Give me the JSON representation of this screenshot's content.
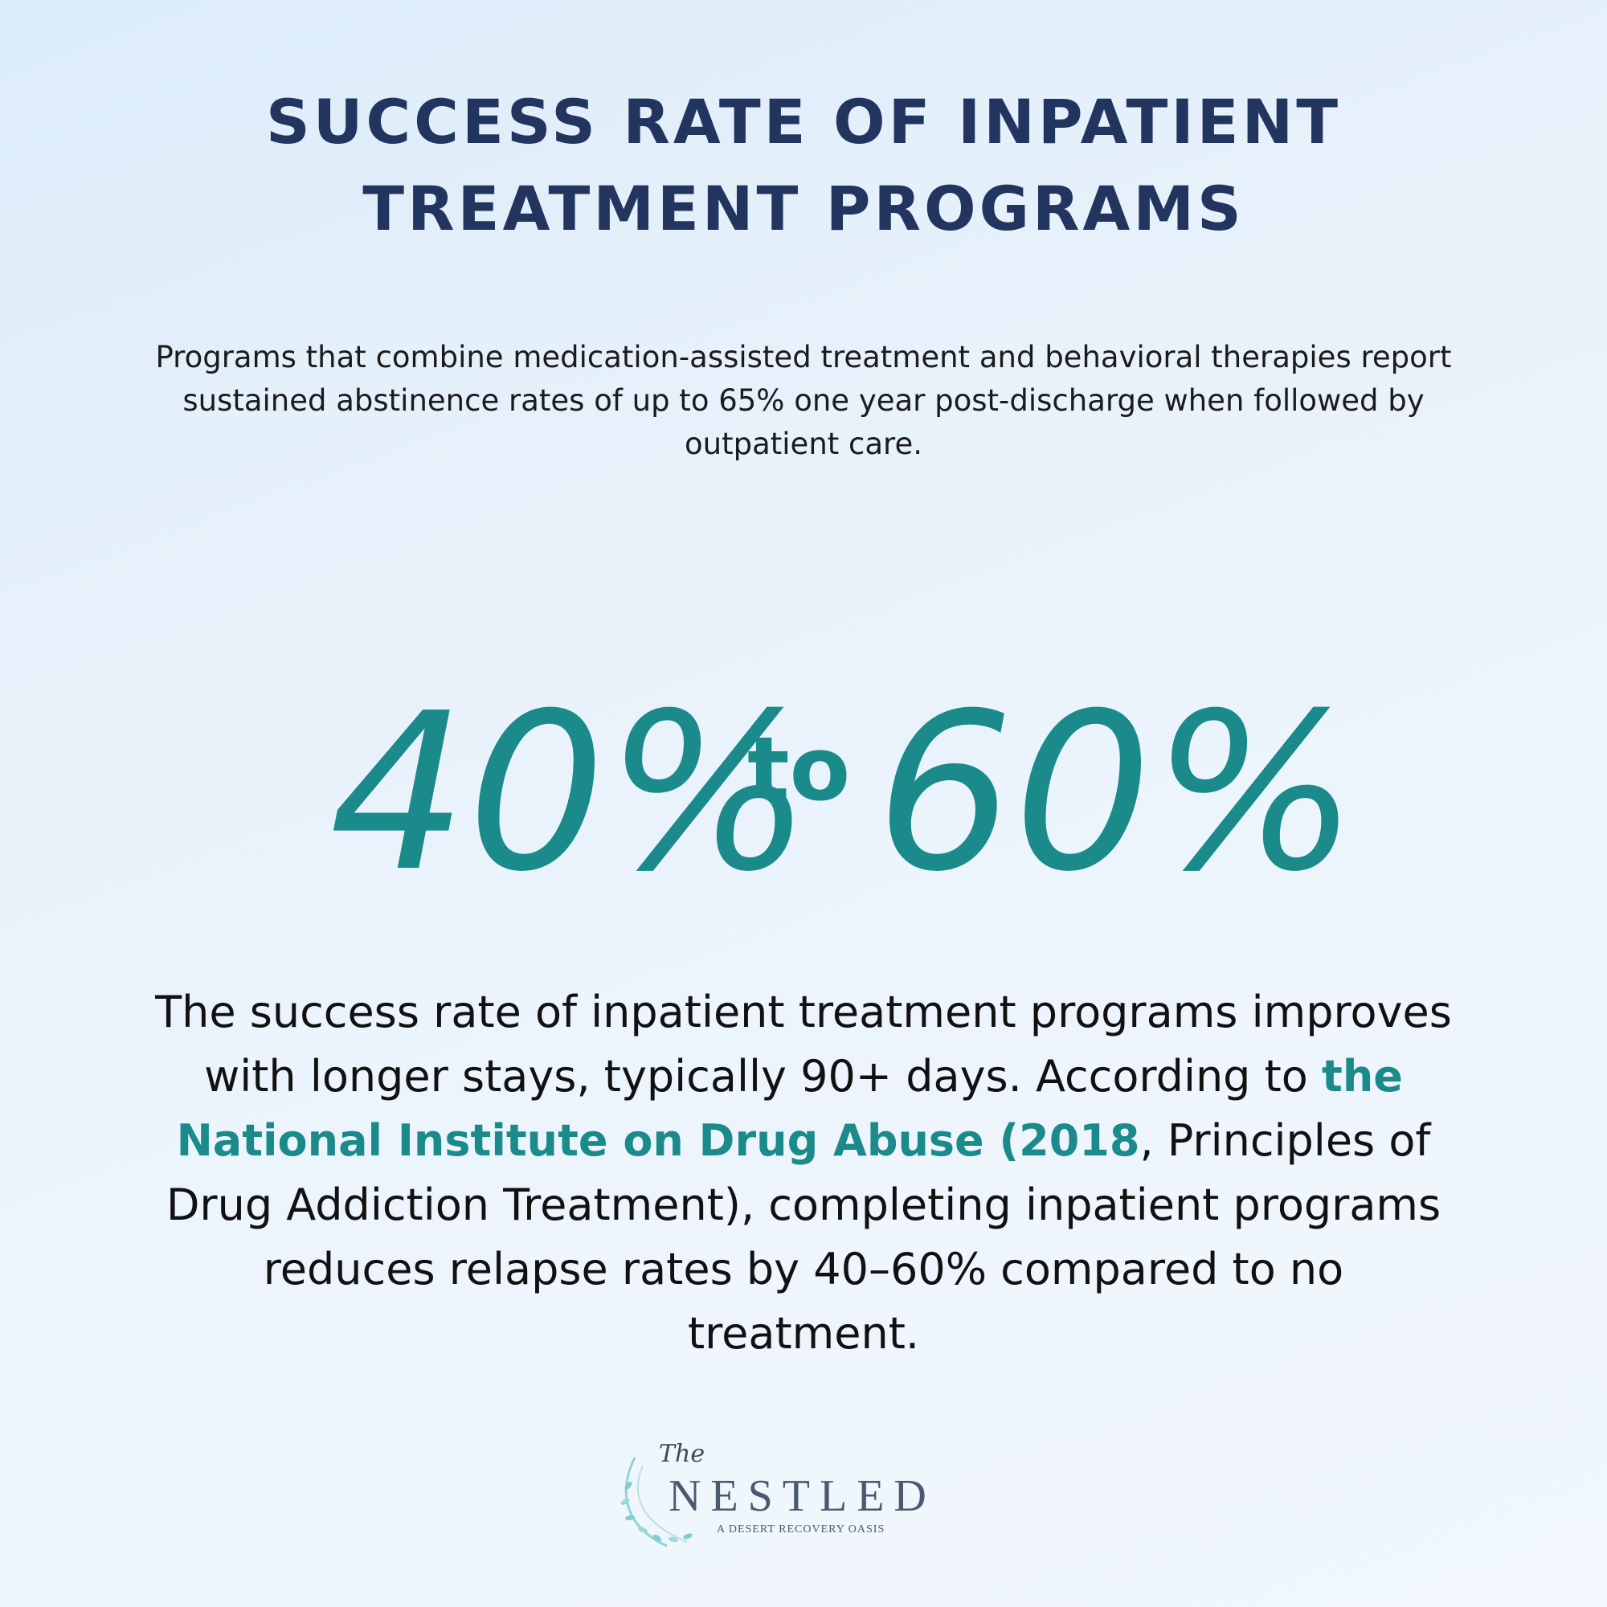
{
  "title": {
    "line1": "SUCCESS RATE OF INPATIENT",
    "line2": "TREATMENT PROGRAMS"
  },
  "intro": "Programs that combine medication-assisted treatment and behavioral therapies report sustained abstinence rates of up to 65% one year post-discharge when followed by outpatient care.",
  "big_stat": {
    "low": "40%",
    "connector": "to",
    "high": "60%"
  },
  "body": {
    "part1": "The success rate of inpatient treatment programs improves with longer stays, typically 90+ days. According to ",
    "highlight": "the National Institute on Drug Abuse (2018",
    "part2": ", Principles of Drug Addiction Treatment), completing inpatient programs reduces relapse rates by 40–60% compared to no treatment."
  },
  "logo": {
    "the": "The",
    "name": "NESTLED",
    "tagline": "A DESERT RECOVERY OASIS"
  },
  "colors": {
    "title": "#22355f",
    "accent": "#1a8a8a",
    "text": "#111111"
  }
}
